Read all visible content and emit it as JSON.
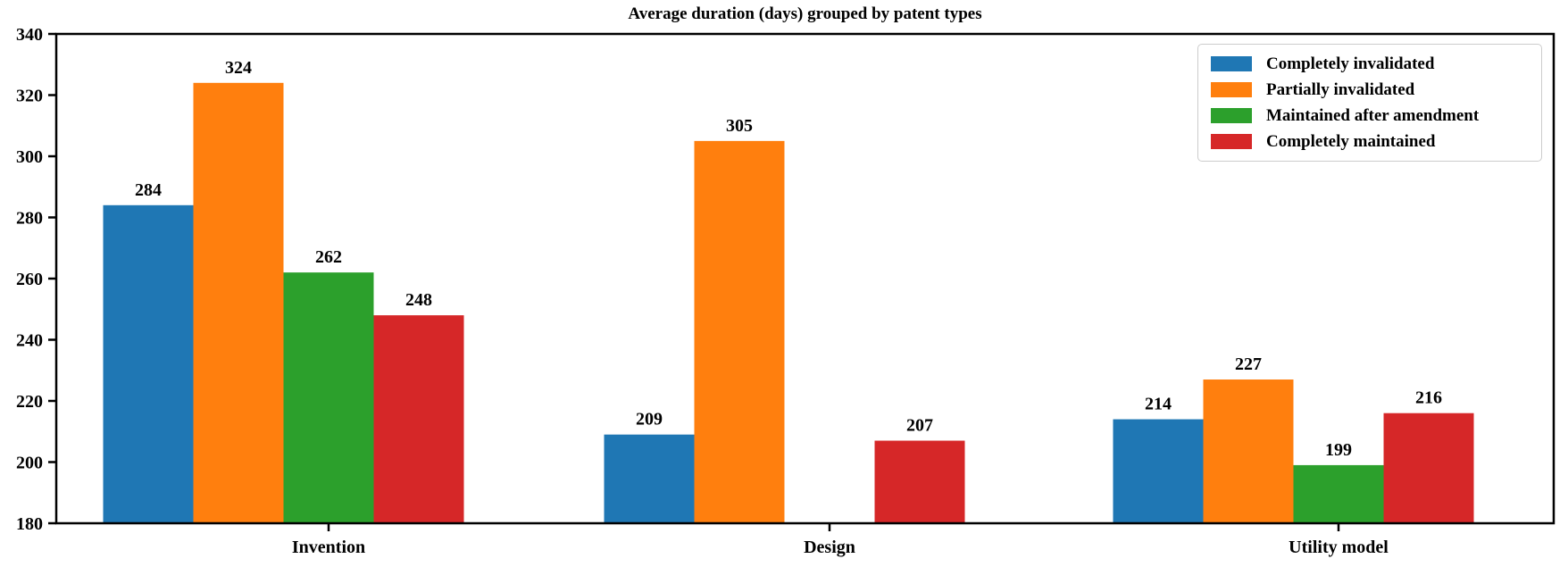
{
  "title": "Average duration (days) grouped by patent types",
  "chart_data": {
    "type": "bar",
    "title": "Average duration (days) grouped by patent types",
    "categories": [
      "Invention",
      "Design",
      "Utility model"
    ],
    "series": [
      {
        "name": "Completely invalidated",
        "color": "#1f77b4",
        "values": [
          284,
          209,
          214
        ]
      },
      {
        "name": "Partially invalidated",
        "color": "#ff7f0e",
        "values": [
          324,
          305,
          227
        ]
      },
      {
        "name": "Maintained after amendment",
        "color": "#2ca02c",
        "values": [
          262,
          null,
          199
        ]
      },
      {
        "name": "Completely maintained",
        "color": "#d62728",
        "values": [
          248,
          207,
          216
        ]
      }
    ],
    "ylim": [
      180,
      340
    ],
    "yticks": [
      180,
      200,
      220,
      240,
      260,
      280,
      300,
      320,
      340
    ],
    "bar_value_labels": true,
    "grid": false,
    "legend_position": "upper right",
    "frame_color": "#000000",
    "background_color": "#ffffff"
  }
}
